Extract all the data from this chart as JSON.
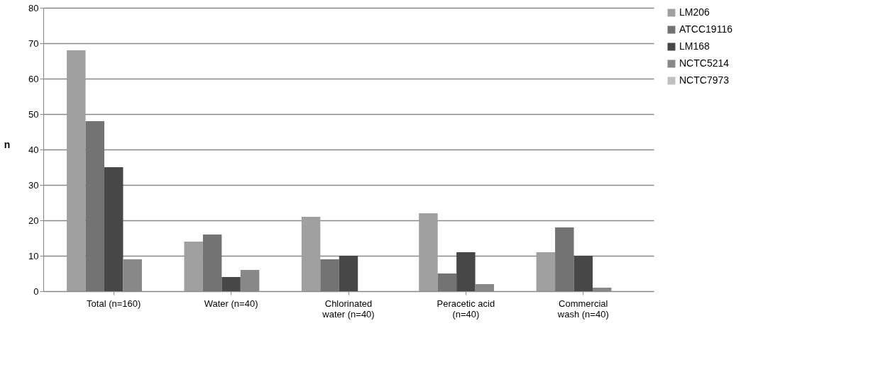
{
  "chart_data": {
    "type": "bar",
    "ylabel": "n",
    "categories": [
      "Total (n=160)",
      "Water (n=40)",
      "Chlorinated water (n=40)",
      "Peracetic acid (n=40)",
      "Commercial wash (n=40)"
    ],
    "series": [
      {
        "name": "LM206",
        "color": "#a0a0a0",
        "values": [
          68,
          14,
          21,
          22,
          11
        ]
      },
      {
        "name": "ATCC19116",
        "color": "#737373",
        "values": [
          48,
          16,
          9,
          5,
          18
        ]
      },
      {
        "name": "LM168",
        "color": "#474747",
        "values": [
          35,
          4,
          10,
          11,
          10
        ]
      },
      {
        "name": "NCTC5214",
        "color": "#888888",
        "values": [
          9,
          6,
          0,
          2,
          1
        ]
      },
      {
        "name": "NCTC7973",
        "color": "#c0c0c0",
        "values": [
          0,
          0,
          0,
          0,
          0
        ]
      }
    ],
    "ylim": [
      0,
      80
    ],
    "yticks": [
      0,
      10,
      20,
      30,
      40,
      50,
      60,
      70,
      80
    ],
    "grid": "y",
    "legend": "right"
  }
}
